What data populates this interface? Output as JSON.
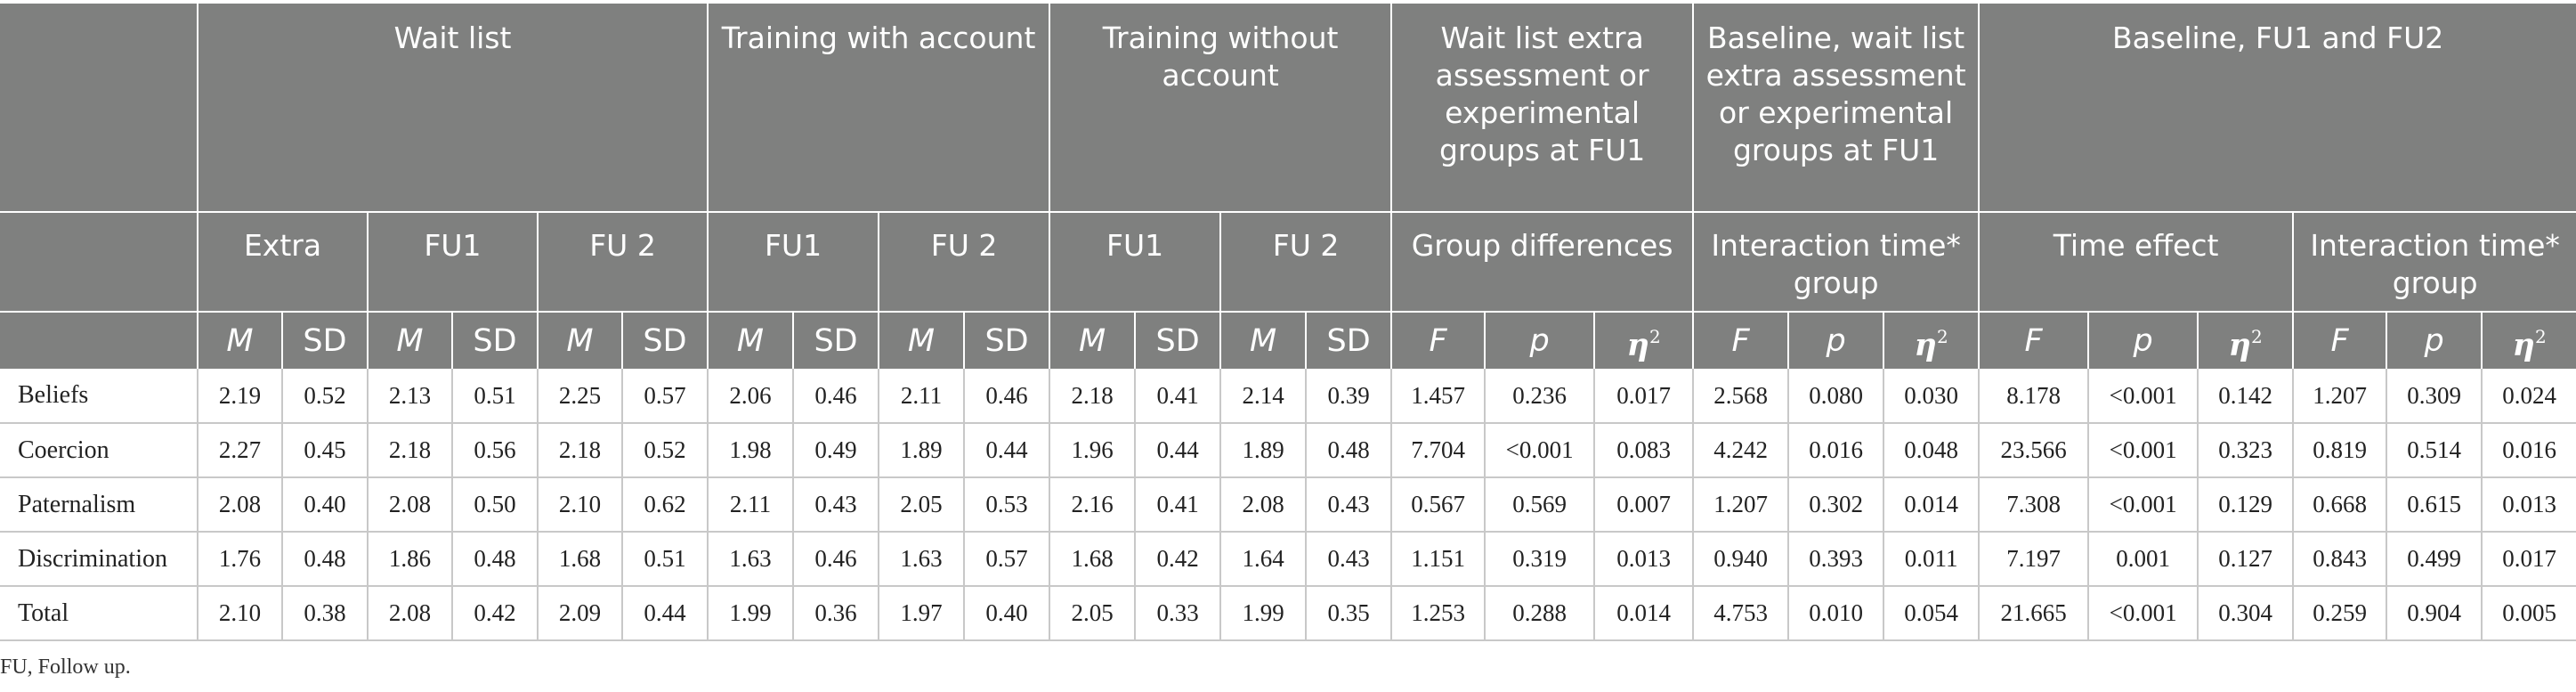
{
  "table": {
    "groups": [
      {
        "label": "",
        "colspan": 1
      },
      {
        "label": "Wait list",
        "colspan": 6
      },
      {
        "label": "Training with account",
        "colspan": 4
      },
      {
        "label": "Training without account",
        "colspan": 4
      },
      {
        "label": "Wait list extra assessment or experimental groups at FU1",
        "colspan": 3
      },
      {
        "label": "Baseline, wait list extra assessment or experimental groups at FU1",
        "colspan": 3
      },
      {
        "label": "Baseline, FU1 and FU2",
        "colspan": 6
      }
    ],
    "subgroups": [
      {
        "label": "",
        "colspan": 1
      },
      {
        "label": "Extra",
        "colspan": 2
      },
      {
        "label": "FU1",
        "colspan": 2
      },
      {
        "label": "FU 2",
        "colspan": 2
      },
      {
        "label": "FU1",
        "colspan": 2
      },
      {
        "label": "FU 2",
        "colspan": 2
      },
      {
        "label": "FU1",
        "colspan": 2
      },
      {
        "label": "FU 2",
        "colspan": 2
      },
      {
        "label": "Group differences",
        "colspan": 3
      },
      {
        "label": "Interaction time* group",
        "colspan": 3
      },
      {
        "label": "Time effect",
        "colspan": 3
      },
      {
        "label": "Interaction time* group",
        "colspan": 3
      }
    ],
    "stats": [
      {
        "label": "",
        "style": ""
      },
      {
        "label": "M",
        "style": "it"
      },
      {
        "label": "SD",
        "style": ""
      },
      {
        "label": "M",
        "style": "it"
      },
      {
        "label": "SD",
        "style": ""
      },
      {
        "label": "M",
        "style": "it"
      },
      {
        "label": "SD",
        "style": ""
      },
      {
        "label": "M",
        "style": "it"
      },
      {
        "label": "SD",
        "style": ""
      },
      {
        "label": "M",
        "style": "it"
      },
      {
        "label": "SD",
        "style": ""
      },
      {
        "label": "M",
        "style": "it"
      },
      {
        "label": "SD",
        "style": ""
      },
      {
        "label": "M",
        "style": "it"
      },
      {
        "label": "SD",
        "style": ""
      },
      {
        "label": "F",
        "style": "it"
      },
      {
        "label": "p",
        "style": "it"
      },
      {
        "label": "η",
        "style": "bi",
        "sup": "2"
      },
      {
        "label": "F",
        "style": "it"
      },
      {
        "label": "p",
        "style": "it"
      },
      {
        "label": "η",
        "style": "bi",
        "sup": "2"
      },
      {
        "label": "F",
        "style": "it"
      },
      {
        "label": "p",
        "style": "it"
      },
      {
        "label": "η",
        "style": "bi",
        "sup": "2"
      },
      {
        "label": "F",
        "style": "it"
      },
      {
        "label": "p",
        "style": "it"
      },
      {
        "label": "η",
        "style": "bi",
        "sup": "2"
      }
    ],
    "rows": [
      {
        "label": "Beliefs",
        "values": [
          "2.19",
          "0.52",
          "2.13",
          "0.51",
          "2.25",
          "0.57",
          "2.06",
          "0.46",
          "2.11",
          "0.46",
          "2.18",
          "0.41",
          "2.14",
          "0.39",
          "1.457",
          "0.236",
          "0.017",
          "2.568",
          "0.080",
          "0.030",
          "8.178",
          "<0.001",
          "0.142",
          "1.207",
          "0.309",
          "0.024"
        ]
      },
      {
        "label": "Coercion",
        "values": [
          "2.27",
          "0.45",
          "2.18",
          "0.56",
          "2.18",
          "0.52",
          "1.98",
          "0.49",
          "1.89",
          "0.44",
          "1.96",
          "0.44",
          "1.89",
          "0.48",
          "7.704",
          "<0.001",
          "0.083",
          "4.242",
          "0.016",
          "0.048",
          "23.566",
          "<0.001",
          "0.323",
          "0.819",
          "0.514",
          "0.016"
        ]
      },
      {
        "label": "Paternalism",
        "values": [
          "2.08",
          "0.40",
          "2.08",
          "0.50",
          "2.10",
          "0.62",
          "2.11",
          "0.43",
          "2.05",
          "0.53",
          "2.16",
          "0.41",
          "2.08",
          "0.43",
          "0.567",
          "0.569",
          "0.007",
          "1.207",
          "0.302",
          "0.014",
          "7.308",
          "<0.001",
          "0.129",
          "0.668",
          "0.615",
          "0.013"
        ]
      },
      {
        "label": "Discrimination",
        "values": [
          "1.76",
          "0.48",
          "1.86",
          "0.48",
          "1.68",
          "0.51",
          "1.63",
          "0.46",
          "1.63",
          "0.57",
          "1.68",
          "0.42",
          "1.64",
          "0.43",
          "1.151",
          "0.319",
          "0.013",
          "0.940",
          "0.393",
          "0.011",
          "7.197",
          "0.001",
          "0.127",
          "0.843",
          "0.499",
          "0.017"
        ]
      },
      {
        "label": "Total",
        "values": [
          "2.10",
          "0.38",
          "2.08",
          "0.42",
          "2.09",
          "0.44",
          "1.99",
          "0.36",
          "1.97",
          "0.40",
          "2.05",
          "0.33",
          "1.99",
          "0.35",
          "1.253",
          "0.288",
          "0.014",
          "4.753",
          "0.010",
          "0.054",
          "21.665",
          "<0.001",
          "0.304",
          "0.259",
          "0.904",
          "0.005"
        ]
      }
    ]
  },
  "footnote": "FU, Follow up."
}
